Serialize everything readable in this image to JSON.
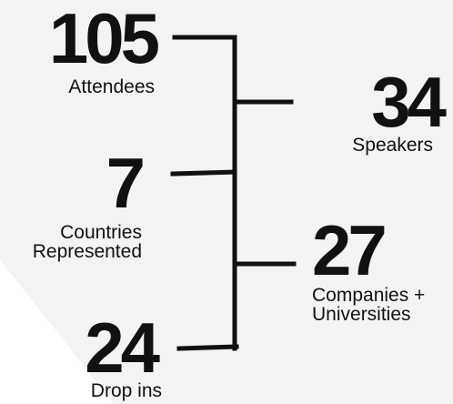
{
  "stats": [
    {
      "number": "105",
      "label_lines": [
        "Attendees"
      ]
    },
    {
      "number": "34",
      "label_lines": [
        "Speakers"
      ]
    },
    {
      "number": "7",
      "label_lines": [
        "Countries",
        "Represented"
      ]
    },
    {
      "number": "27",
      "label_lines": [
        "Companies +",
        "Universities"
      ]
    },
    {
      "number": "24",
      "label_lines": [
        "Drop ins"
      ]
    }
  ]
}
